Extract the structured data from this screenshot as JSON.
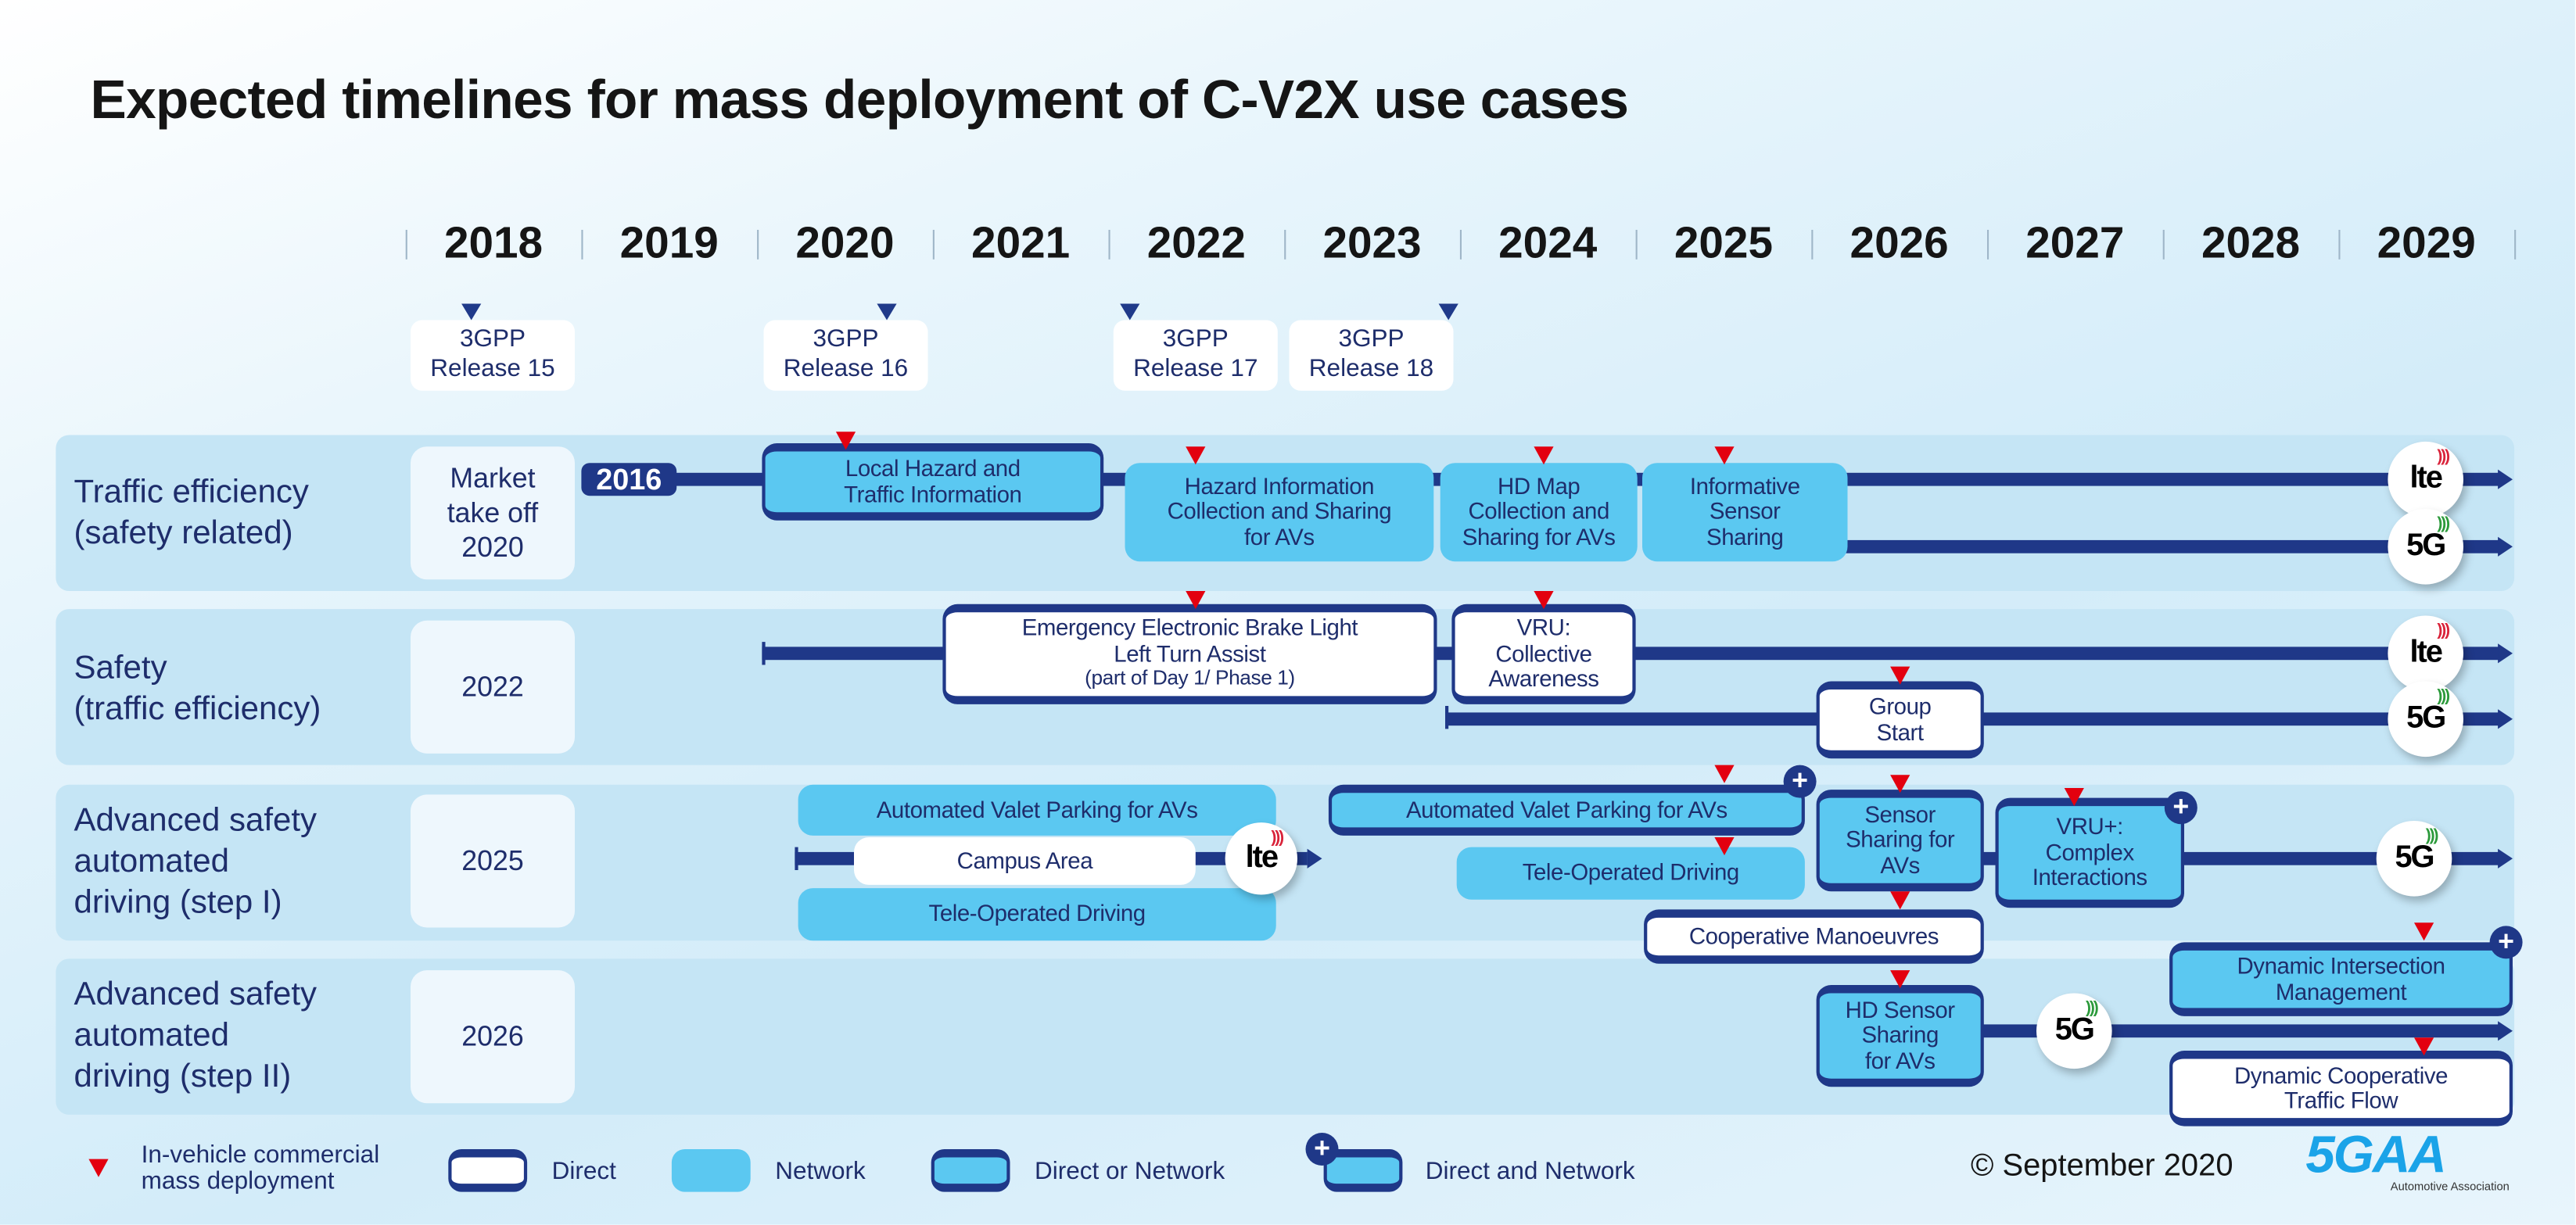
{
  "title": "Expected timelines for mass deployment of C-V2X use cases",
  "years": [
    "2018",
    "2019",
    "2020",
    "2021",
    "2022",
    "2023",
    "2024",
    "2025",
    "2026",
    "2027",
    "2028",
    "2029"
  ],
  "releases": [
    "3GPP\nRelease 15",
    "3GPP\nRelease 16",
    "3GPP\nRelease 17",
    "3GPP\nRelease 18"
  ],
  "rows": [
    {
      "label": "Traffic efficiency\n(safety related)",
      "date": "Market\ntake off\n2020"
    },
    {
      "label": "Safety\n(traffic efficiency)",
      "date": "2022"
    },
    {
      "label": "Advanced safety\nautomated\ndriving (step I)",
      "date": "2025"
    },
    {
      "label": "Advanced safety\nautomated\ndriving (step II)",
      "date": "2026"
    }
  ],
  "start_pill": "2016",
  "boxes": {
    "local_hazard": "Local Hazard and\nTraffic Information",
    "hazard_info": "Hazard Information\nCollection and Sharing\nfor AVs",
    "hd_map": "HD Map\nCollection and\nSharing for AVs",
    "informative_sensor": "Informative\nSensor\nSharing",
    "eebl": "Emergency Electronic Brake Light\nLeft Turn Assist",
    "eebl_note": "(part of Day 1/ Phase 1)",
    "vru": "VRU:\nCollective\nAwareness",
    "group_start": "Group\nStart",
    "avp_1": "Automated Valet Parking for AVs",
    "campus": "Campus Area",
    "teleop_1": "Tele-Operated Driving",
    "avp_2": "Automated Valet Parking for AVs",
    "teleop_2": "Tele-Operated Driving",
    "sensor_sharing": "Sensor\nSharing for\nAVs",
    "vru_plus": "VRU+:\nComplex\nInteractions",
    "coop_manoeuvres": "Cooperative Manoeuvres",
    "hd_sensor": "HD Sensor\nSharing\nfor AVs",
    "dyn_intersection": "Dynamic Intersection\nManagement",
    "dyn_coop_flow": "Dynamic Cooperative\nTraffic Flow"
  },
  "network_icons": {
    "lte": "lte",
    "g5": "5G"
  },
  "legend": {
    "marker": "In-vehicle commercial\nmass deployment",
    "direct": "Direct",
    "network": "Network",
    "direct_or_network": "Direct or Network",
    "direct_and_network": "Direct and Network"
  },
  "copyright": "© September 2020",
  "logo": {
    "name": "5GAA",
    "tagline": "Automotive Association"
  },
  "colors": {
    "navy": "#1f3888",
    "network": "#5bc8f1",
    "row": "#c5e5f5",
    "marker": "#e3000f",
    "lte": "#d9233a",
    "g5": "#2c9a3b"
  }
}
